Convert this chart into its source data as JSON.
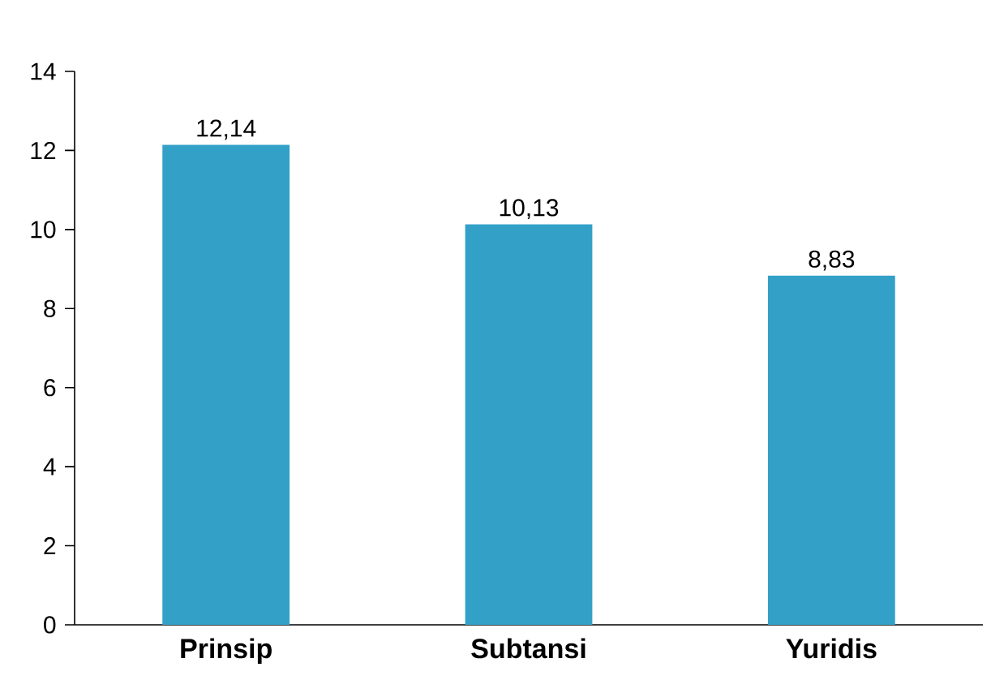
{
  "chart_data": {
    "type": "bar",
    "categories": [
      "Prinsip",
      "Subtansi",
      "Yuridis"
    ],
    "values": [
      12.14,
      10.13,
      8.83
    ],
    "value_labels": [
      "12,14",
      "10,13",
      "8,83"
    ],
    "color": "#33a0c8",
    "ylim": [
      0,
      14
    ],
    "yticks": [
      0,
      2,
      4,
      6,
      8,
      10,
      12,
      14
    ]
  }
}
